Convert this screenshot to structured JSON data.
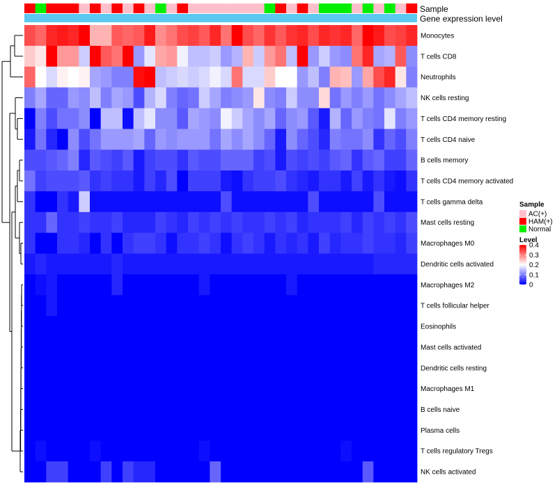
{
  "chart_data": {
    "type": "heatmap",
    "title": "",
    "annotation_rows": [
      "Sample",
      "Gene expression level"
    ],
    "sample_palette": {
      "AC(+)": "#ffc0cb",
      "HAM(+)": "#ff0000",
      "Normal": "#00ee00"
    },
    "samples": [
      "HAM(+)",
      "Normal",
      "HAM(+)",
      "HAM(+)",
      "HAM(+)",
      "AC(+)",
      "HAM(+)",
      "AC(+)",
      "HAM(+)",
      "AC(+)",
      "HAM(+)",
      "AC(+)",
      "Normal",
      "AC(+)",
      "HAM(+)",
      "AC(+)",
      "AC(+)",
      "AC(+)",
      "AC(+)",
      "AC(+)",
      "AC(+)",
      "AC(+)",
      "Normal",
      "HAM(+)",
      "AC(+)",
      "HAM(+)",
      "AC(+)",
      "Normal",
      "Normal",
      "Normal",
      "AC(+)",
      "Normal",
      "AC(+)",
      "Normal",
      "AC(+)",
      "HAM(+)"
    ],
    "rows": [
      "Monocytes",
      "T cells CD8",
      "Neutrophils",
      "NK cells resting",
      "T cells CD4 memory resting",
      "T cells CD4 naive",
      "B cells memory",
      "T cells CD4 memory activated",
      "T cells gamma delta",
      "Mast cells resting",
      "Macrophages M0",
      "Dendritic cells activated",
      "Macrophages M2",
      "T cells follicular helper",
      "Eosinophils",
      "Mast cells activated",
      "Dendritic cells resting",
      "Macrophages M1",
      "B cells naive",
      "Plasma cells",
      "T cells regulatory  Tregs",
      "NK cells activated"
    ],
    "values": [
      [
        0.34,
        0.32,
        0.37,
        0.38,
        0.37,
        0.4,
        0.26,
        0.26,
        0.33,
        0.32,
        0.33,
        0.38,
        0.29,
        0.31,
        0.34,
        0.35,
        0.33,
        0.37,
        0.31,
        0.4,
        0.34,
        0.32,
        0.36,
        0.33,
        0.36,
        0.37,
        0.34,
        0.37,
        0.36,
        0.37,
        0.32,
        0.41,
        0.38,
        0.34,
        0.35,
        0.37
      ],
      [
        0.24,
        0.22,
        0.4,
        0.28,
        0.28,
        0.16,
        0.4,
        0.33,
        0.31,
        0.4,
        0.12,
        0.18,
        0.27,
        0.28,
        0.19,
        0.15,
        0.15,
        0.16,
        0.12,
        0.14,
        0.26,
        0.16,
        0.28,
        0.31,
        0.15,
        0.4,
        0.12,
        0.16,
        0.12,
        0.11,
        0.31,
        0.37,
        0.13,
        0.14,
        0.33,
        0.11
      ],
      [
        0.32,
        0.2,
        0.17,
        0.21,
        0.2,
        0.21,
        0.13,
        0.12,
        0.1,
        0.1,
        0.39,
        0.41,
        0.15,
        0.16,
        0.17,
        0.16,
        0.17,
        0.19,
        0.17,
        0.31,
        0.17,
        0.17,
        0.24,
        0.2,
        0.2,
        0.12,
        0.15,
        0.1,
        0.26,
        0.25,
        0.12,
        0.27,
        0.34,
        0.37,
        0.22,
        0.1
      ],
      [
        0.1,
        0.13,
        0.08,
        0.08,
        0.12,
        0.11,
        0.15,
        0.1,
        0.13,
        0.12,
        0.06,
        0.14,
        0.17,
        0.1,
        0.08,
        0.09,
        0.16,
        0.13,
        0.1,
        0.11,
        0.12,
        0.22,
        0.11,
        0.1,
        0.16,
        0.11,
        0.11,
        0.23,
        0.09,
        0.12,
        0.1,
        0.12,
        0.09,
        0.11,
        0.13,
        0.15
      ],
      [
        0.0,
        0.1,
        0.06,
        0.09,
        0.09,
        0.11,
        0.0,
        0.15,
        0.15,
        0.01,
        0.15,
        0.18,
        0.11,
        0.11,
        0.07,
        0.13,
        0.12,
        0.11,
        0.19,
        0.16,
        0.13,
        0.11,
        0.13,
        0.08,
        0.11,
        0.12,
        0.07,
        0.02,
        0.14,
        0.08,
        0.12,
        0.1,
        0.09,
        0.18,
        0.1,
        0.12
      ],
      [
        0.02,
        0.09,
        0.03,
        0.0,
        0.11,
        0.06,
        0.09,
        0.12,
        0.12,
        0.12,
        0.13,
        0.08,
        0.12,
        0.11,
        0.12,
        0.12,
        0.12,
        0.09,
        0.13,
        0.11,
        0.13,
        0.11,
        0.08,
        0.02,
        0.11,
        0.08,
        0.06,
        0.03,
        0.1,
        0.09,
        0.09,
        0.11,
        0.04,
        0.08,
        0.06,
        0.1
      ],
      [
        0.06,
        0.06,
        0.07,
        0.08,
        0.1,
        0.03,
        0.07,
        0.06,
        0.05,
        0.07,
        0.02,
        0.05,
        0.06,
        0.06,
        0.04,
        0.07,
        0.06,
        0.06,
        0.08,
        0.08,
        0.08,
        0.05,
        0.06,
        0.02,
        0.06,
        0.05,
        0.06,
        0.05,
        0.07,
        0.08,
        0.04,
        0.07,
        0.08,
        0.05,
        0.05,
        0.08
      ],
      [
        0.09,
        0.05,
        0.06,
        0.06,
        0.06,
        0.07,
        0.04,
        0.05,
        0.04,
        0.04,
        0.02,
        0.05,
        0.03,
        0.06,
        0.0,
        0.05,
        0.05,
        0.05,
        0.02,
        0.01,
        0.04,
        0.05,
        0.05,
        0.06,
        0.04,
        0.03,
        0.02,
        0.04,
        0.04,
        0.02,
        0.05,
        0.02,
        0.04,
        0.02,
        0.01,
        0.04
      ],
      [
        0.04,
        0.0,
        0.0,
        0.04,
        0.02,
        0.16,
        0.01,
        0.01,
        0.01,
        0.01,
        0.01,
        0.01,
        0.01,
        0.01,
        0.01,
        0.01,
        0.01,
        0.01,
        0.06,
        0.01,
        0.01,
        0.01,
        0.01,
        0.01,
        0.01,
        0.01,
        0.06,
        0.01,
        0.01,
        0.01,
        0.01,
        0.01,
        0.06,
        0.01,
        0.01,
        0.01
      ],
      [
        0.04,
        0.04,
        0.08,
        0.04,
        0.04,
        0.05,
        0.04,
        0.04,
        0.05,
        0.03,
        0.03,
        0.03,
        0.05,
        0.04,
        0.03,
        0.05,
        0.04,
        0.05,
        0.04,
        0.05,
        0.04,
        0.04,
        0.05,
        0.04,
        0.05,
        0.03,
        0.04,
        0.04,
        0.04,
        0.05,
        0.03,
        0.05,
        0.04,
        0.05,
        0.04,
        0.06
      ],
      [
        0.04,
        0.0,
        0.0,
        0.04,
        0.04,
        0.03,
        0.0,
        0.04,
        0.0,
        0.04,
        0.05,
        0.05,
        0.04,
        0.01,
        0.04,
        0.04,
        0.05,
        0.04,
        0.01,
        0.04,
        0.05,
        0.04,
        0.02,
        0.04,
        0.03,
        0.04,
        0.02,
        0.05,
        0.03,
        0.04,
        0.04,
        0.05,
        0.04,
        0.04,
        0.03,
        0.05
      ],
      [
        0.02,
        0.03,
        0.02,
        0.02,
        0.02,
        0.02,
        0.02,
        0.02,
        0.03,
        0.02,
        0.02,
        0.02,
        0.02,
        0.02,
        0.02,
        0.02,
        0.02,
        0.02,
        0.02,
        0.02,
        0.02,
        0.02,
        0.02,
        0.02,
        0.02,
        0.02,
        0.02,
        0.02,
        0.02,
        0.02,
        0.02,
        0.02,
        0.03,
        0.03,
        0.03,
        0.03
      ],
      [
        0.0,
        0.01,
        0.02,
        0.0,
        0.0,
        0.0,
        0.0,
        0.0,
        0.03,
        0.0,
        0.0,
        0.0,
        0.0,
        0.0,
        0.0,
        0.0,
        0.02,
        0.0,
        0.0,
        0.0,
        0.0,
        0.0,
        0.0,
        0.0,
        0.02,
        0.0,
        0.0,
        0.0,
        0.0,
        0.0,
        0.0,
        0.0,
        0.0,
        0.0,
        0.0,
        0.0
      ],
      [
        0.0,
        0.0,
        0.02,
        0.0,
        0.0,
        0.0,
        0.0,
        0.0,
        0.0,
        0.0,
        0.0,
        0.0,
        0.0,
        0.0,
        0.0,
        0.0,
        0.0,
        0.0,
        0.0,
        0.0,
        0.0,
        0.0,
        0.0,
        0.0,
        0.0,
        0.0,
        0.0,
        0.0,
        0.0,
        0.0,
        0.0,
        0.0,
        0.0,
        0.0,
        0.0,
        0.0
      ],
      [
        0,
        0,
        0,
        0,
        0,
        0,
        0,
        0,
        0,
        0,
        0,
        0,
        0,
        0,
        0,
        0,
        0,
        0,
        0,
        0,
        0,
        0,
        0,
        0,
        0,
        0,
        0,
        0,
        0,
        0,
        0,
        0,
        0,
        0,
        0,
        0
      ],
      [
        0,
        0,
        0,
        0,
        0,
        0,
        0,
        0,
        0,
        0,
        0,
        0,
        0,
        0,
        0,
        0,
        0,
        0,
        0,
        0,
        0,
        0,
        0,
        0,
        0,
        0,
        0,
        0,
        0,
        0,
        0,
        0,
        0,
        0,
        0,
        0
      ],
      [
        0,
        0,
        0,
        0,
        0,
        0,
        0,
        0,
        0,
        0,
        0,
        0,
        0,
        0,
        0,
        0,
        0,
        0,
        0,
        0,
        0,
        0,
        0,
        0,
        0,
        0,
        0,
        0,
        0,
        0,
        0,
        0,
        0,
        0,
        0,
        0
      ],
      [
        0,
        0,
        0,
        0,
        0,
        0,
        0,
        0,
        0,
        0,
        0,
        0,
        0,
        0,
        0,
        0,
        0,
        0,
        0,
        0,
        0,
        0,
        0,
        0,
        0,
        0,
        0,
        0,
        0,
        0,
        0,
        0,
        0,
        0,
        0,
        0
      ],
      [
        0,
        0,
        0,
        0,
        0,
        0,
        0,
        0,
        0,
        0,
        0,
        0,
        0,
        0,
        0,
        0,
        0,
        0,
        0,
        0,
        0,
        0,
        0,
        0,
        0,
        0,
        0,
        0,
        0,
        0,
        0,
        0,
        0,
        0,
        0,
        0
      ],
      [
        0,
        0,
        0,
        0,
        0,
        0,
        0,
        0,
        0,
        0,
        0,
        0,
        0,
        0,
        0,
        0,
        0,
        0,
        0,
        0,
        0,
        0,
        0,
        0,
        0,
        0,
        0,
        0,
        0,
        0,
        0,
        0,
        0,
        0,
        0,
        0
      ],
      [
        0.0,
        0.01,
        0.0,
        0.0,
        0.0,
        0.0,
        0.01,
        0.0,
        0.0,
        0.0,
        0.0,
        0.0,
        0.0,
        0.0,
        0.0,
        0.0,
        0.01,
        0.0,
        0.0,
        0.0,
        0.0,
        0.0,
        0.0,
        0.0,
        0.0,
        0.0,
        0.0,
        0.0,
        0.0,
        0.01,
        0.0,
        0.0,
        0.0,
        0.0,
        0.0,
        0.0
      ],
      [
        0.0,
        0.0,
        0.05,
        0.05,
        0.0,
        0.0,
        0.0,
        0.05,
        0.0,
        0.05,
        0.03,
        0.03,
        0.0,
        0.0,
        0.0,
        0.0,
        0.0,
        0.08,
        0.0,
        0.0,
        0.0,
        0.0,
        0.0,
        0.0,
        0.0,
        0.0,
        0.0,
        0.0,
        0.0,
        0.0,
        0.0,
        0.07,
        0.0,
        0.0,
        0.0,
        0.0
      ]
    ],
    "legend": {
      "sample_title": "Sample",
      "sample_items": [
        "AC(+)",
        "HAM(+)",
        "Normal"
      ],
      "level_title": "Level",
      "level_ticks": [
        "0.4",
        "0.3",
        "0.2",
        "0.1",
        "0"
      ],
      "level_tick_values": [
        0.4,
        0.3,
        0.2,
        0.1,
        0
      ],
      "level_range": [
        0,
        0.4
      ]
    },
    "colors": {
      "low": "#0000ff",
      "mid": "#ffffff",
      "high": "#ff0000",
      "gene_bar": "#5bc8f0",
      "dendrogram": "#000000"
    },
    "dendrogram": {
      "leaf_order": [
        "Monocytes",
        "T cells CD8",
        "Neutrophils",
        "NK cells resting",
        "T cells CD4 memory resting",
        "T cells CD4 naive",
        "B cells memory",
        "T cells CD4 memory activated",
        "T cells gamma delta",
        "Mast cells resting",
        "Macrophages M0",
        "Dendritic cells activated",
        "Macrophages M2",
        "T cells follicular helper",
        "Eosinophils",
        "Mast cells activated",
        "Dendritic cells resting",
        "Macrophages M1",
        "B cells naive",
        "Plasma cells",
        "T cells regulatory  Tregs",
        "NK cells activated"
      ]
    }
  }
}
